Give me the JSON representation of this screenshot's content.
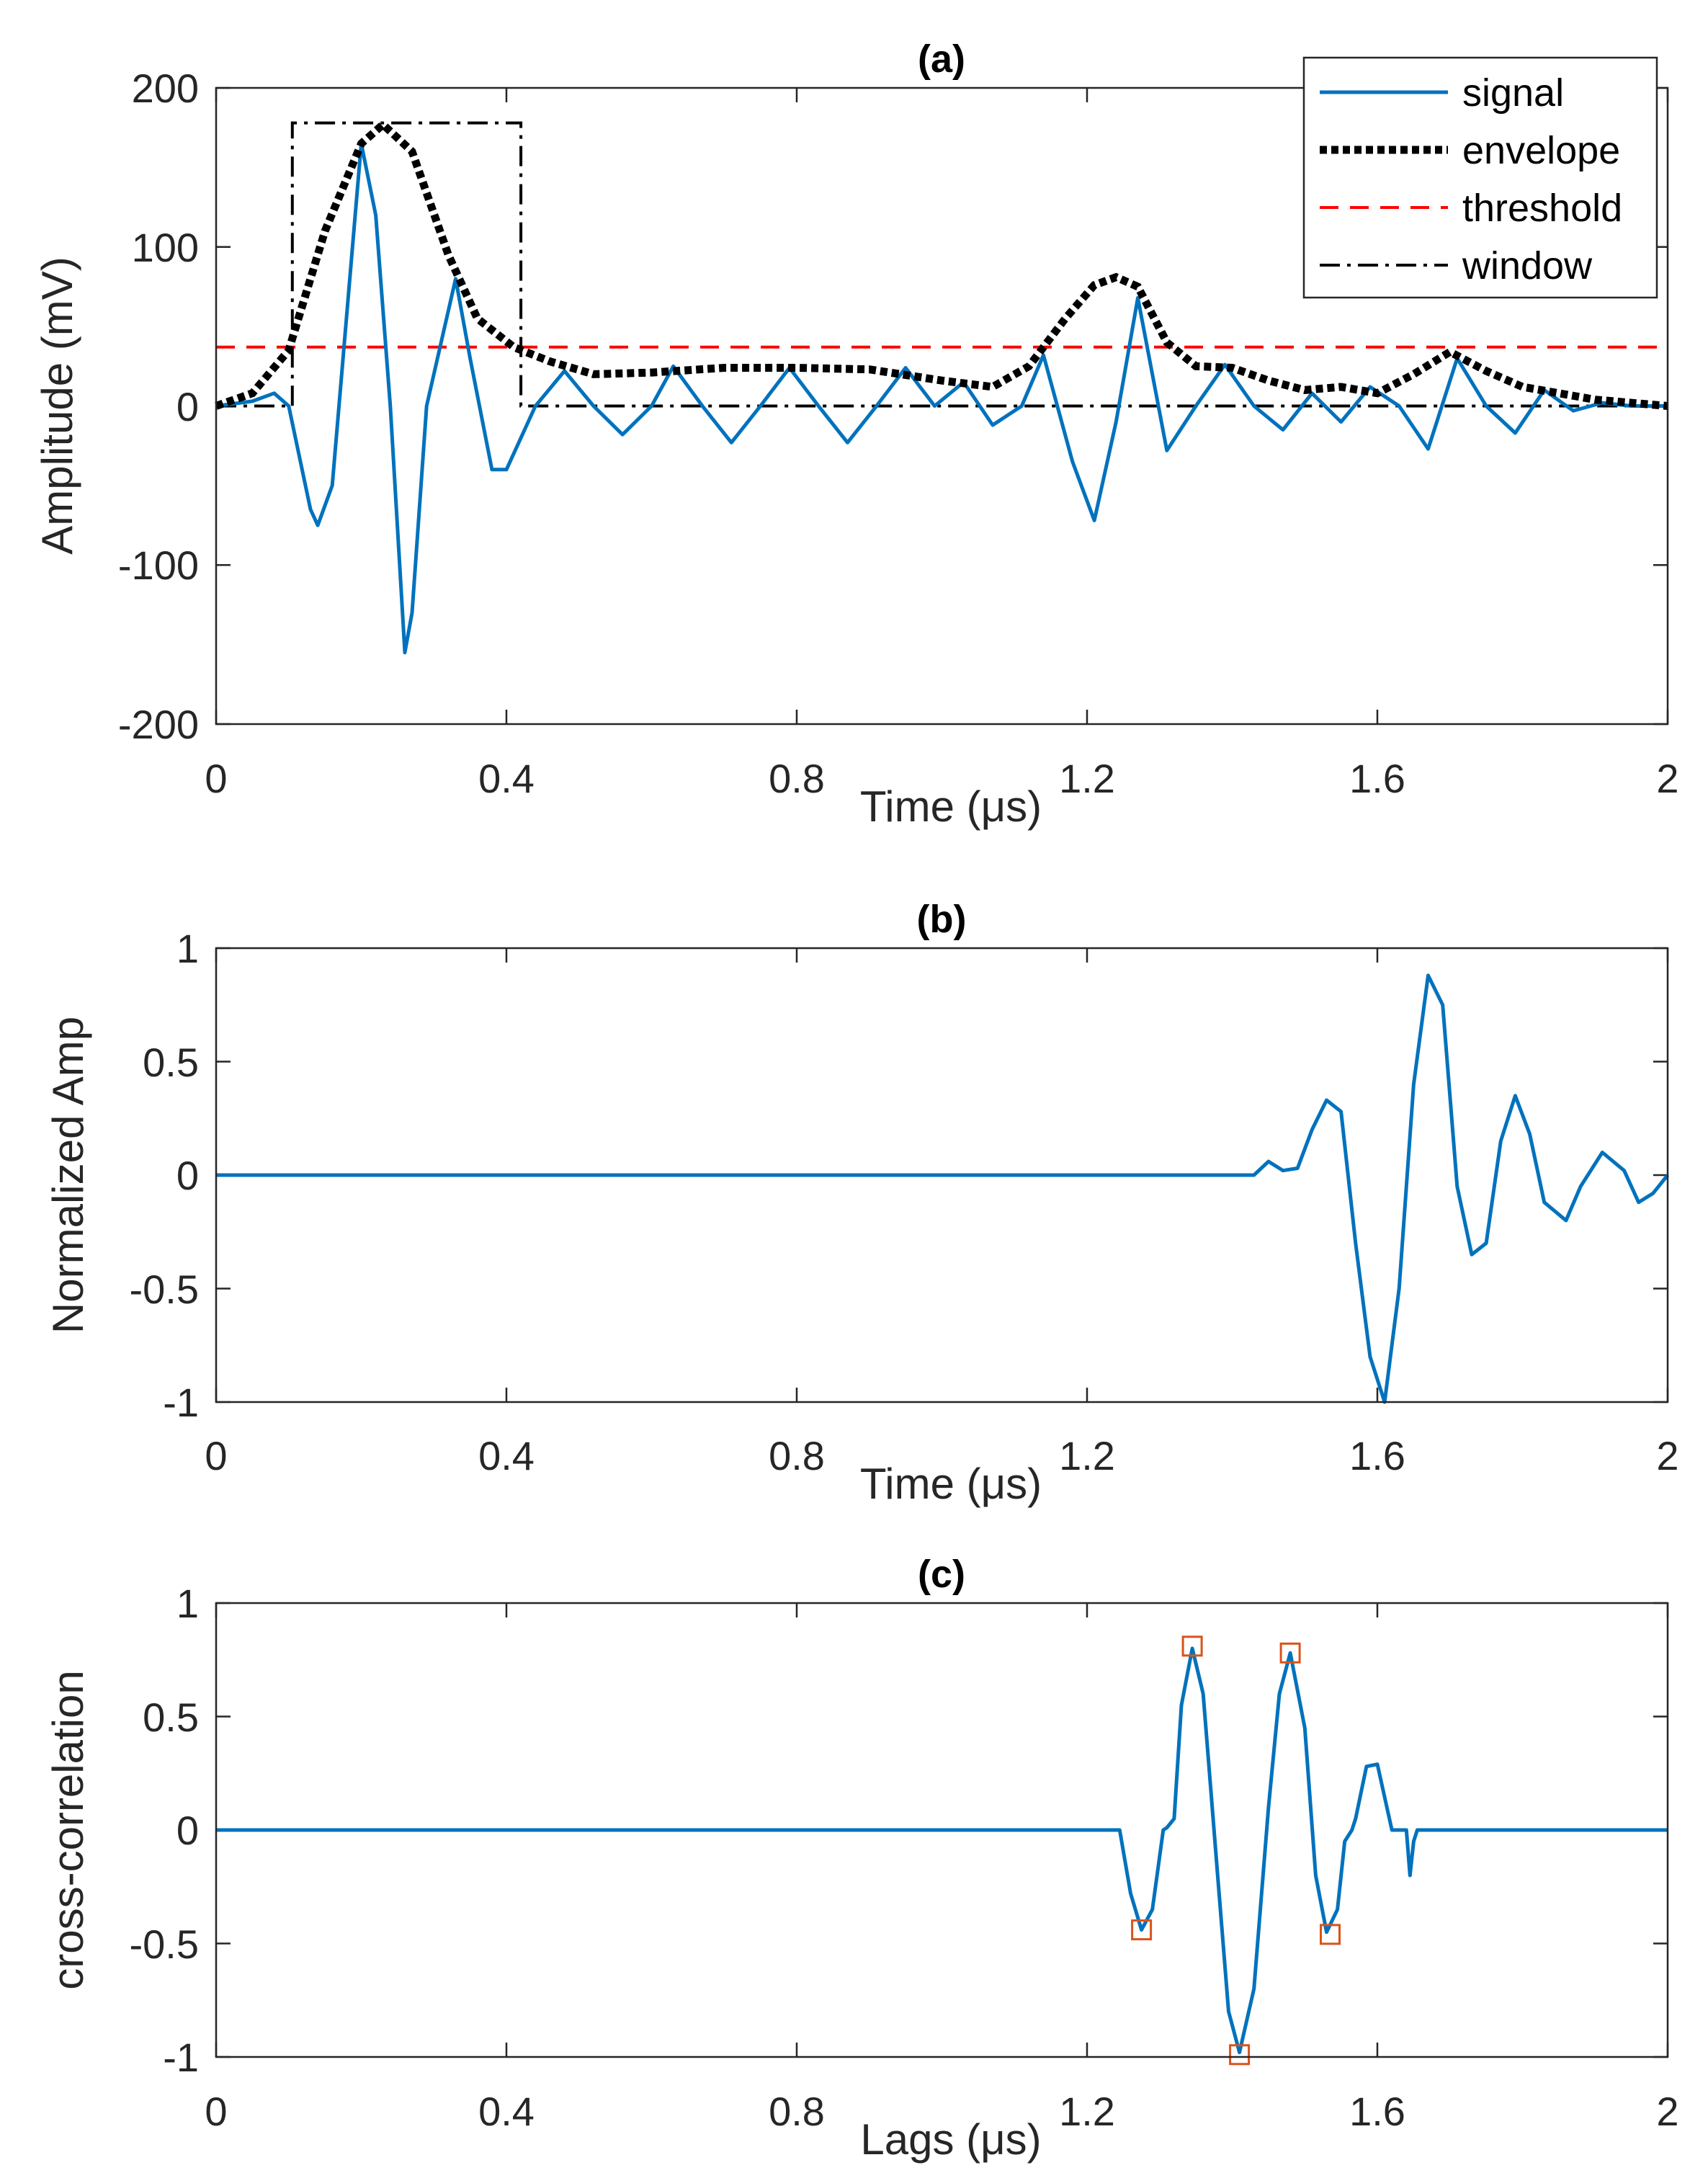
{
  "colors": {
    "signal": "#0072BD",
    "envelope": "#000000",
    "threshold": "#FF0000",
    "window": "#000000",
    "markers": "#D95319",
    "axes": "#262626"
  },
  "chart_data": [
    {
      "panel": "a",
      "type": "line",
      "title": "(a)",
      "xlabel": "Time (μs)",
      "ylabel": "Amplitude (mV)",
      "xlim": [
        0,
        2
      ],
      "ylim": [
        -200,
        200
      ],
      "xticks": [
        0,
        0.4,
        0.8,
        1.2,
        1.6,
        2
      ],
      "xtick_labels": [
        "0",
        "0.4",
        "0.8",
        "1.2",
        "1.6",
        "2"
      ],
      "yticks": [
        200,
        100,
        0,
        -100,
        -200
      ],
      "ytick_labels": [
        "200",
        "100",
        "0",
        "-100",
        "-200"
      ],
      "legend": {
        "location": "top-right",
        "entries": [
          "signal",
          "envelope",
          "threshold",
          "window"
        ]
      },
      "series": [
        {
          "name": "signal",
          "style": "solid",
          "x": [
            0,
            0.05,
            0.08,
            0.1,
            0.13,
            0.14,
            0.16,
            0.2,
            0.22,
            0.24,
            0.26,
            0.27,
            0.29,
            0.33,
            0.35,
            0.38,
            0.4,
            0.44,
            0.48,
            0.52,
            0.56,
            0.6,
            0.63,
            0.67,
            0.71,
            0.75,
            0.79,
            0.83,
            0.87,
            0.91,
            0.95,
            0.99,
            1.03,
            1.07,
            1.11,
            1.14,
            1.18,
            1.21,
            1.24,
            1.27,
            1.31,
            1.35,
            1.39,
            1.43,
            1.47,
            1.51,
            1.55,
            1.59,
            1.63,
            1.67,
            1.71,
            1.75,
            1.79,
            1.83,
            1.87,
            1.91,
            1.95,
            2.0
          ],
          "y": [
            0,
            3,
            8,
            0,
            -65,
            -75,
            -50,
            165,
            120,
            0,
            -155,
            -130,
            0,
            80,
            30,
            -40,
            -40,
            0,
            22,
            0,
            -18,
            0,
            25,
            0,
            -23,
            0,
            24,
            0,
            -23,
            0,
            24,
            0,
            15,
            -12,
            0,
            32,
            -35,
            -72,
            -10,
            68,
            -28,
            0,
            26,
            0,
            -15,
            8,
            -10,
            12,
            0,
            -27,
            30,
            0,
            -17,
            10,
            -3,
            2,
            0,
            0
          ]
        },
        {
          "name": "envelope",
          "style": "dotted",
          "x": [
            0,
            0.05,
            0.1,
            0.15,
            0.2,
            0.23,
            0.27,
            0.32,
            0.36,
            0.41,
            0.46,
            0.52,
            0.6,
            0.7,
            0.8,
            0.9,
            1.0,
            1.07,
            1.12,
            1.17,
            1.21,
            1.24,
            1.27,
            1.31,
            1.35,
            1.4,
            1.45,
            1.5,
            1.55,
            1.6,
            1.65,
            1.7,
            1.75,
            1.8,
            1.85,
            1.9,
            1.95,
            2.0
          ],
          "y": [
            0,
            8,
            35,
            110,
            165,
            177,
            160,
            95,
            55,
            37,
            28,
            20,
            21,
            24,
            24,
            23,
            16,
            12,
            25,
            55,
            76,
            81,
            75,
            40,
            25,
            24,
            16,
            10,
            12,
            8,
            20,
            34,
            22,
            12,
            8,
            4,
            2,
            0
          ]
        },
        {
          "name": "threshold",
          "style": "dashed",
          "x": [
            0,
            2
          ],
          "y": [
            37,
            37
          ]
        },
        {
          "name": "window",
          "style": "dashdot",
          "x": [
            0,
            0.105,
            0.105,
            0.42,
            0.42,
            2.0
          ],
          "y": [
            0,
            0,
            178,
            178,
            0,
            0
          ]
        }
      ]
    },
    {
      "panel": "b",
      "type": "line",
      "title": "(b)",
      "xlabel": "Time (μs)",
      "ylabel": "Normalized Amp",
      "xlim": [
        0,
        2
      ],
      "ylim": [
        -1,
        1
      ],
      "xticks": [
        0,
        0.4,
        0.8,
        1.2,
        1.6,
        2
      ],
      "xtick_labels": [
        "0",
        "0.4",
        "0.8",
        "1.2",
        "1.6",
        "2"
      ],
      "yticks": [
        1,
        0.5,
        0,
        -0.5,
        -1
      ],
      "ytick_labels": [
        "1",
        "0.5",
        "0",
        "-0.5",
        "-1"
      ],
      "series": [
        {
          "name": "signal",
          "style": "solid",
          "x": [
            0,
            1.43,
            1.45,
            1.47,
            1.49,
            1.51,
            1.53,
            1.55,
            1.57,
            1.59,
            1.61,
            1.63,
            1.65,
            1.67,
            1.69,
            1.71,
            1.73,
            1.75,
            1.77,
            1.79,
            1.81,
            1.83,
            1.86,
            1.88,
            1.91,
            1.94,
            1.96,
            1.98,
            2.0
          ],
          "y": [
            0,
            0,
            0.06,
            0.02,
            0.03,
            0.2,
            0.33,
            0.28,
            -0.3,
            -0.8,
            -1.0,
            -0.5,
            0.4,
            0.88,
            0.75,
            -0.05,
            -0.35,
            -0.3,
            0.15,
            0.35,
            0.18,
            -0.12,
            -0.2,
            -0.05,
            0.1,
            0.02,
            -0.12,
            -0.08,
            0
          ]
        }
      ]
    },
    {
      "panel": "c",
      "type": "line",
      "title": "(c)",
      "xlabel": "Lags (μs)",
      "ylabel": "cross-correlation",
      "xlim": [
        0,
        2
      ],
      "ylim": [
        -1,
        1
      ],
      "xticks": [
        0,
        0.4,
        0.8,
        1.2,
        1.6,
        2
      ],
      "xtick_labels": [
        "0",
        "0.4",
        "0.8",
        "1.2",
        "1.6",
        "2"
      ],
      "yticks": [
        1,
        0.5,
        0,
        -0.5,
        -1
      ],
      "ytick_labels": [
        "1",
        "0.5",
        "0",
        "-0.5",
        "-1"
      ],
      "series": [
        {
          "name": "cross-correlation",
          "style": "solid",
          "x": [
            0,
            1.245,
            1.26,
            1.275,
            1.29,
            1.305,
            1.31,
            1.32,
            1.33,
            1.345,
            1.36,
            1.38,
            1.395,
            1.41,
            1.43,
            1.45,
            1.465,
            1.48,
            1.5,
            1.515,
            1.53,
            1.545,
            1.555,
            1.565,
            1.57,
            1.585,
            1.6,
            1.62,
            1.64,
            1.645,
            1.65,
            1.655,
            1.66,
            2.0
          ],
          "y": [
            0,
            0,
            -0.28,
            -0.44,
            -0.35,
            0,
            0.01,
            0.05,
            0.55,
            0.8,
            0.6,
            -0.2,
            -0.8,
            -0.98,
            -0.7,
            0.1,
            0.6,
            0.78,
            0.45,
            -0.2,
            -0.45,
            -0.35,
            -0.05,
            0,
            0.05,
            0.28,
            0.29,
            0,
            0,
            -0.2,
            -0.05,
            0,
            0,
            0
          ]
        }
      ],
      "markers": {
        "shape": "square",
        "x": [
          1.275,
          1.345,
          1.41,
          1.48,
          1.535
        ],
        "y": [
          -0.44,
          0.81,
          -0.99,
          0.78,
          -0.46
        ]
      }
    }
  ]
}
